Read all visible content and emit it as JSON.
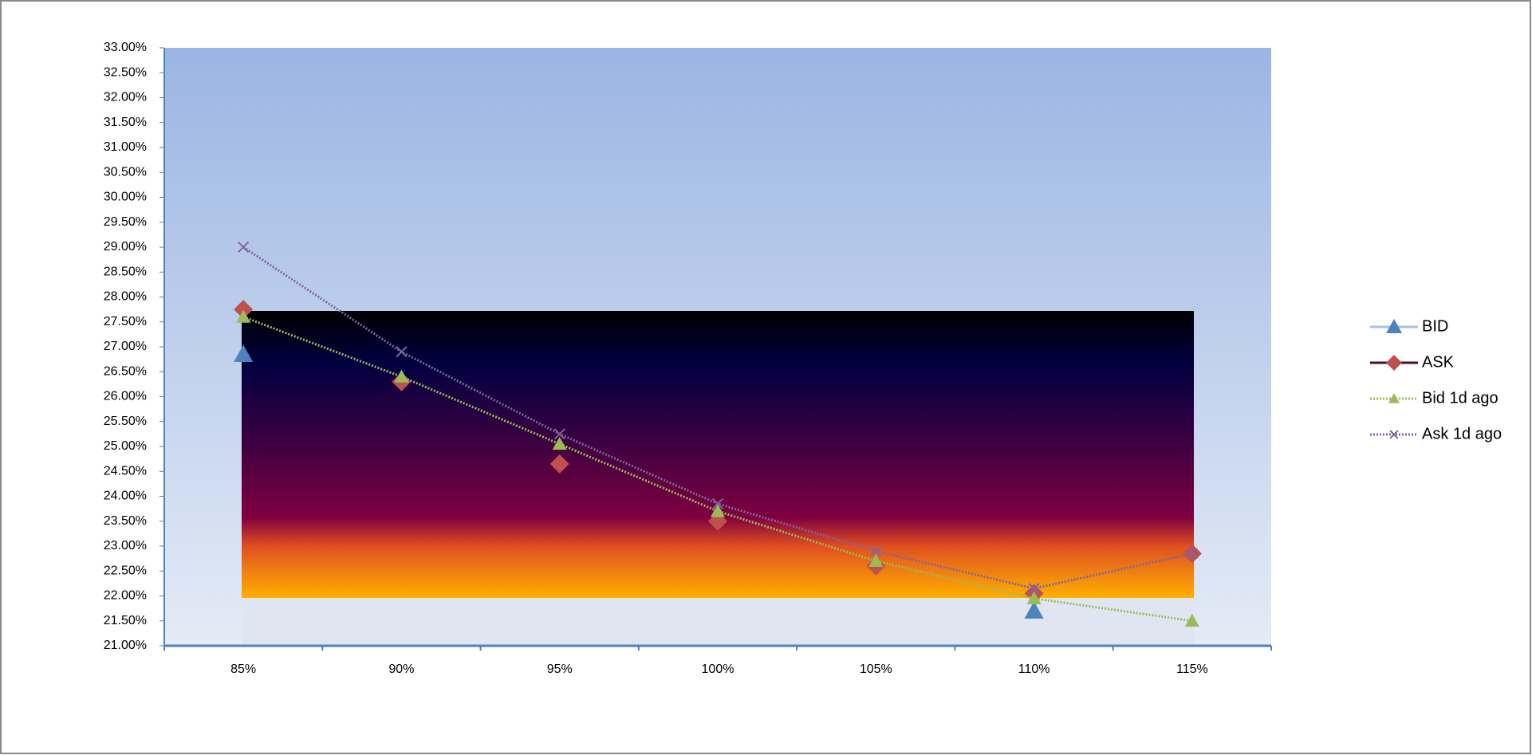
{
  "chart_data": {
    "type": "line",
    "categories": [
      "85%",
      "90%",
      "95%",
      "100%",
      "105%",
      "110%",
      "115%"
    ],
    "series": [
      {
        "name": "BID",
        "color": "#4f81bd",
        "marker": "triangle",
        "line": "none",
        "values": [
          26.85,
          null,
          null,
          null,
          null,
          21.7,
          null
        ]
      },
      {
        "name": "ASK",
        "color": "#c0504d",
        "marker": "diamond",
        "line": "none",
        "values": [
          27.75,
          26.3,
          24.65,
          23.5,
          22.6,
          22.05,
          22.85
        ]
      },
      {
        "name": "Bid 1d ago",
        "color": "#9bbb59",
        "marker": "triangle",
        "line": "dotted",
        "values": [
          27.6,
          26.4,
          25.05,
          23.7,
          22.7,
          21.95,
          21.5
        ]
      },
      {
        "name": "Ask 1d ago",
        "color": "#8064a2",
        "marker": "x",
        "line": "dotted",
        "values": [
          29.0,
          26.9,
          25.25,
          23.85,
          22.9,
          22.15,
          22.85
        ]
      }
    ],
    "ylim": [
      21,
      33
    ],
    "yticks": [
      {
        "value": 21,
        "label": "21.00%"
      },
      {
        "value": 21.5,
        "label": "21.50%"
      },
      {
        "value": 22,
        "label": "22.00%"
      },
      {
        "value": 22.5,
        "label": "22.50%"
      },
      {
        "value": 23,
        "label": "23.00%"
      },
      {
        "value": 23.5,
        "label": "23.50%"
      },
      {
        "value": 24,
        "label": "24.00%"
      },
      {
        "value": 24.5,
        "label": "24.50%"
      },
      {
        "value": 25,
        "label": "25.00%"
      },
      {
        "value": 25.5,
        "label": "25.50%"
      },
      {
        "value": 26,
        "label": "26.00%"
      },
      {
        "value": 26.5,
        "label": "26.50%"
      },
      {
        "value": 27,
        "label": "27.00%"
      },
      {
        "value": 27.5,
        "label": "27.50%"
      },
      {
        "value": 28,
        "label": "28.00%"
      },
      {
        "value": 28.5,
        "label": "28.50%"
      },
      {
        "value": 29,
        "label": "29.00%"
      },
      {
        "value": 29.5,
        "label": "29.50%"
      },
      {
        "value": 30,
        "label": "30.00%"
      },
      {
        "value": 30.5,
        "label": "30.50%"
      },
      {
        "value": 31,
        "label": "31.00%"
      },
      {
        "value": 31.5,
        "label": "31.50%"
      },
      {
        "value": 32,
        "label": "32.00%"
      },
      {
        "value": 32.5,
        "label": "32.50%"
      },
      {
        "value": 33,
        "label": "33.00%"
      }
    ],
    "legend": "right"
  }
}
